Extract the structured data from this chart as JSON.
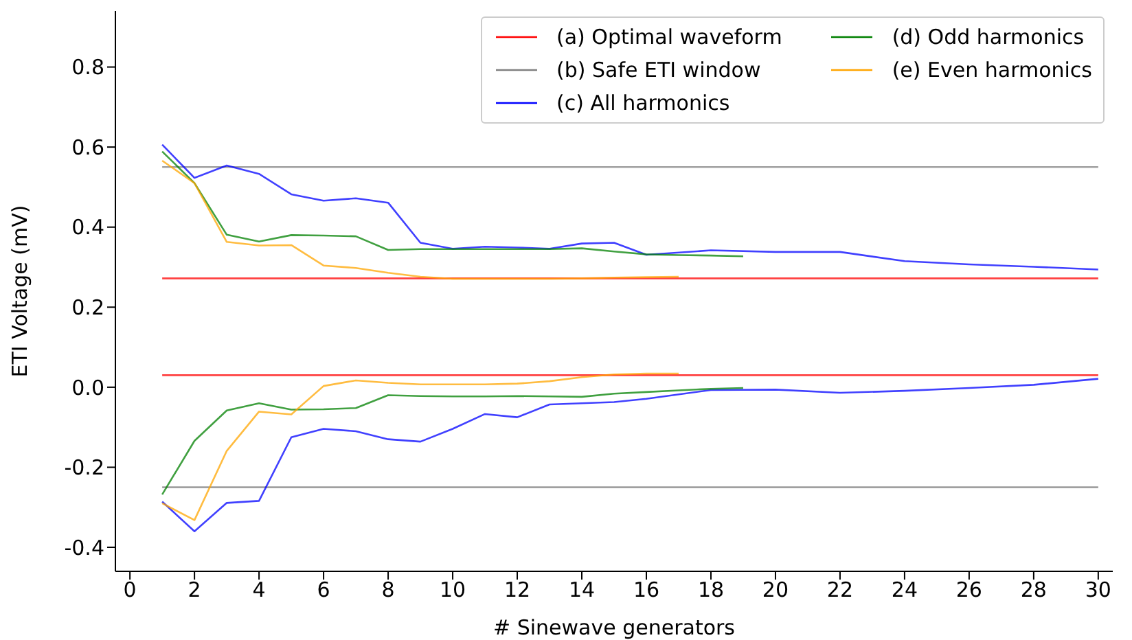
{
  "chart_data": {
    "type": "line",
    "xlabel": "# Sinewave generators",
    "ylabel": "ETI Voltage (mV)",
    "xlim": [
      -0.45,
      30.45
    ],
    "ylim": [
      -0.46,
      0.94
    ],
    "xticks": [
      0,
      2,
      4,
      6,
      8,
      10,
      12,
      14,
      16,
      18,
      20,
      22,
      24,
      26,
      28,
      30
    ],
    "yticks": [
      -0.4,
      -0.2,
      {
        "value": 0,
        "label": "0.0"
      },
      0.2,
      0.4,
      0.6,
      0.8
    ],
    "grid": false,
    "legend": "top right",
    "marker": "none",
    "line_style": "solid",
    "series": [
      {
        "name": "(a) Optimal waveform",
        "color": "#ff0000",
        "x": [
          1,
          30
        ],
        "values": [
          0.272,
          0.272
        ]
      },
      {
        "color": "#ff0000",
        "x": [
          1,
          30
        ],
        "values": [
          0.03,
          0.03
        ]
      },
      {
        "name": "(b) Safe ETI window",
        "color": "#808080",
        "x": [
          1,
          30
        ],
        "values": [
          0.55,
          0.55
        ]
      },
      {
        "color": "#808080",
        "x": [
          1,
          30
        ],
        "values": [
          -0.25,
          -0.25
        ]
      },
      {
        "name": "(c) All harmonics",
        "color": "#0000ff",
        "x": [
          1,
          2,
          3,
          4,
          5,
          6,
          7,
          8,
          9,
          10,
          11,
          12,
          13,
          14,
          15,
          16,
          18,
          20,
          22,
          24,
          26,
          28,
          30
        ],
        "values": [
          0.606,
          0.523,
          0.554,
          0.533,
          0.482,
          0.466,
          0.472,
          0.461,
          0.361,
          0.346,
          0.351,
          0.349,
          0.346,
          0.359,
          0.361,
          0.331,
          0.342,
          0.338,
          0.338,
          0.315,
          0.307,
          0.301,
          0.294
        ]
      },
      {
        "color": "#0000ff",
        "x": [
          1,
          2,
          3,
          4,
          5,
          6,
          7,
          8,
          9,
          10,
          11,
          12,
          13,
          14,
          15,
          16,
          18,
          20,
          22,
          24,
          26,
          28,
          30
        ],
        "values": [
          -0.286,
          -0.36,
          -0.289,
          -0.284,
          -0.125,
          -0.104,
          -0.11,
          -0.13,
          -0.136,
          -0.104,
          -0.067,
          -0.075,
          -0.043,
          -0.04,
          -0.037,
          -0.029,
          -0.007,
          -0.006,
          -0.014,
          -0.009,
          -0.002,
          0.006,
          0.021
        ]
      },
      {
        "name": "(d) Odd harmonics",
        "color": "#008000",
        "x": [
          1,
          2,
          3,
          4,
          5,
          6,
          7,
          8,
          9,
          10,
          11,
          12,
          13,
          14,
          15,
          16,
          17,
          18,
          19
        ],
        "values": [
          0.589,
          0.51,
          0.381,
          0.364,
          0.38,
          0.379,
          0.377,
          0.343,
          0.345,
          0.345,
          0.345,
          0.345,
          0.345,
          0.347,
          0.339,
          0.332,
          0.33,
          0.329,
          0.327
        ]
      },
      {
        "color": "#008000",
        "x": [
          1,
          2,
          3,
          4,
          5,
          6,
          7,
          8,
          9,
          10,
          11,
          12,
          13,
          14,
          15,
          16,
          17,
          18,
          19
        ],
        "values": [
          -0.268,
          -0.134,
          -0.058,
          -0.04,
          -0.056,
          -0.055,
          -0.052,
          -0.02,
          -0.022,
          -0.023,
          -0.023,
          -0.022,
          -0.023,
          -0.024,
          -0.016,
          -0.012,
          -0.008,
          -0.004,
          -0.002
        ]
      },
      {
        "name": "(e) Even harmonics",
        "color": "#ffa500",
        "x": [
          1,
          2,
          3,
          4,
          5,
          6,
          7,
          8,
          9,
          10,
          11,
          12,
          13,
          14,
          15,
          16,
          17
        ],
        "values": [
          0.566,
          0.51,
          0.363,
          0.354,
          0.355,
          0.304,
          0.298,
          0.286,
          0.276,
          0.271,
          0.271,
          0.271,
          0.271,
          0.272,
          0.274,
          0.275,
          0.276
        ]
      },
      {
        "color": "#ffa500",
        "x": [
          1,
          2,
          3,
          4,
          5,
          6,
          7,
          8,
          9,
          10,
          11,
          12,
          13,
          14,
          15,
          16,
          17
        ],
        "values": [
          -0.29,
          -0.332,
          -0.159,
          -0.061,
          -0.068,
          0.003,
          0.017,
          0.011,
          0.007,
          0.007,
          0.007,
          0.009,
          0.015,
          0.025,
          0.032,
          0.034,
          0.034
        ]
      }
    ]
  }
}
